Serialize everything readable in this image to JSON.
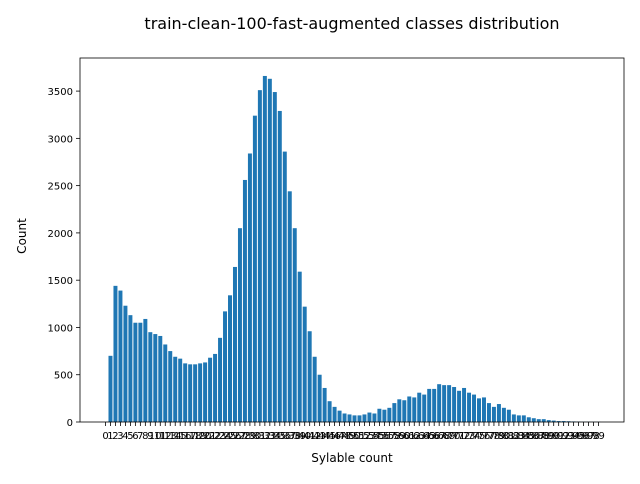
{
  "chart_data": {
    "type": "bar",
    "title": "train-clean-100-fast-augmented classes distribution",
    "xlabel": "Sylable count",
    "ylabel": "Count",
    "ylim": [
      0,
      3850
    ],
    "yticks": [
      0,
      500,
      1000,
      1500,
      2000,
      2500,
      3000,
      3500
    ],
    "bar_color": "#1f77b4",
    "categories": [
      "0",
      "1",
      "2",
      "3",
      "4",
      "5",
      "6",
      "7",
      "8",
      "9",
      "10",
      "11",
      "12",
      "13",
      "14",
      "15",
      "16",
      "17",
      "18",
      "19",
      "20",
      "21",
      "22",
      "23",
      "24",
      "25",
      "26",
      "27",
      "28",
      "29",
      "30",
      "31",
      "32",
      "33",
      "34",
      "35",
      "36",
      "37",
      "38",
      "39",
      "40",
      "41",
      "42",
      "43",
      "44",
      "45",
      "46",
      "47",
      "48",
      "49",
      "50",
      "51",
      "52",
      "53",
      "54",
      "55",
      "56",
      "57",
      "58",
      "59",
      "60",
      "61",
      "62",
      "63",
      "64",
      "65",
      "66",
      "67",
      "68",
      "69",
      "70",
      "71",
      "72",
      "73",
      "74",
      "75",
      "76",
      "77",
      "78",
      "79",
      "80",
      "81",
      "82",
      "83",
      "84",
      "85",
      "86",
      "87",
      "88",
      "89",
      "90",
      "91",
      "92",
      "93",
      "94",
      "95",
      "96",
      "97",
      "98",
      "99"
    ],
    "values": [
      0,
      700,
      1440,
      1390,
      1230,
      1130,
      1050,
      1050,
      1090,
      950,
      930,
      910,
      820,
      750,
      690,
      670,
      620,
      610,
      610,
      620,
      630,
      680,
      720,
      890,
      1170,
      1340,
      1640,
      2050,
      2560,
      2840,
      3240,
      3510,
      3660,
      3630,
      3490,
      3290,
      2860,
      2440,
      2050,
      1590,
      1220,
      960,
      690,
      500,
      360,
      220,
      160,
      120,
      90,
      80,
      70,
      70,
      80,
      100,
      90,
      140,
      130,
      150,
      200,
      240,
      230,
      270,
      260,
      310,
      290,
      350,
      350,
      400,
      390,
      390,
      370,
      330,
      360,
      310,
      290,
      250,
      260,
      200,
      160,
      190,
      150,
      130,
      80,
      70,
      70,
      50,
      40,
      30,
      30,
      20,
      15,
      10,
      10,
      8,
      6,
      5,
      3,
      3,
      2,
      2
    ]
  }
}
